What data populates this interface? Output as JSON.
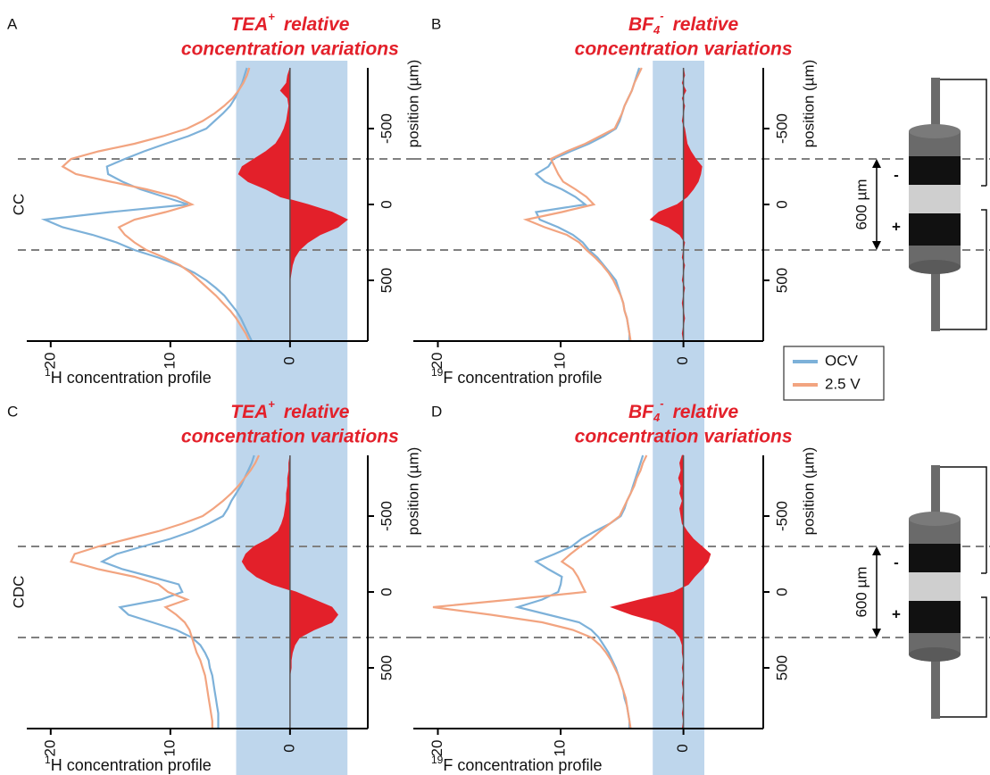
{
  "chart_data": [
    {
      "type": "line",
      "letter": "A",
      "row_label": "CC",
      "title": {
        "base": "TEA",
        "sup": "+",
        "word": "relative",
        "line2": "concentration variations"
      },
      "x_label": {
        "sup": "1",
        "text": "H concentration profile"
      },
      "y_label": "position (µm)",
      "xlim": [
        22,
        -6.5
      ],
      "xticks": [
        20,
        10,
        0
      ],
      "ylim": [
        -900,
        900
      ],
      "yticks": [
        -500,
        0,
        500
      ],
      "band": {
        "color": "#bed6ec",
        "range": [
          4.5,
          -4.8
        ]
      },
      "hlines": [
        -300,
        300
      ],
      "y": [
        -900,
        -850,
        -800,
        -750,
        -700,
        -650,
        -600,
        -550,
        -500,
        -450,
        -400,
        -350,
        -300,
        -250,
        -200,
        -150,
        -100,
        -50,
        0,
        50,
        100,
        150,
        200,
        250,
        300,
        350,
        400,
        450,
        500,
        550,
        600,
        650,
        700,
        750,
        800,
        850,
        900
      ],
      "series": [
        {
          "color": "#7db1d9",
          "values": [
            3.6,
            3.8,
            4.0,
            4.3,
            4.6,
            5.0,
            5.6,
            6.3,
            7.0,
            8.5,
            10.4,
            12.2,
            13.8,
            15.3,
            15.2,
            14.0,
            12.5,
            10.5,
            8.5,
            15.0,
            20.5,
            19.0,
            16.5,
            14.5,
            13.0,
            11.0,
            9.3,
            8.0,
            7.0,
            6.2,
            5.5,
            5.0,
            4.5,
            4.1,
            3.8,
            3.5,
            3.2
          ]
        },
        {
          "color": "#f2a480",
          "values": [
            3.4,
            3.6,
            3.9,
            4.3,
            4.8,
            5.5,
            6.3,
            7.3,
            8.6,
            10.6,
            13.0,
            16.0,
            18.3,
            19.0,
            17.9,
            15.0,
            12.0,
            9.5,
            8.2,
            10.4,
            13.0,
            14.3,
            13.8,
            13.0,
            12.0,
            10.5,
            9.2,
            8.3,
            7.6,
            6.9,
            6.2,
            5.6,
            5.0,
            4.5,
            4.1,
            3.7,
            3.4
          ]
        }
      ],
      "variation": {
        "color": "#e3202a",
        "values": [
          0,
          0.2,
          0.3,
          0.8,
          0.2,
          0.1,
          0.2,
          0.3,
          0.5,
          0.8,
          1.2,
          2.0,
          3.0,
          4.0,
          4.3,
          3.5,
          2.0,
          0.8,
          -1.5,
          -3.5,
          -4.8,
          -4.0,
          -2.5,
          -1.5,
          -0.8,
          -0.4,
          -0.2,
          -0.1,
          0,
          0,
          0,
          0,
          0,
          0,
          0,
          0,
          0
        ]
      }
    },
    {
      "type": "line",
      "letter": "B",
      "title": {
        "base": "BF",
        "sub": "4",
        "sup": "-",
        "word": "relative",
        "line2": "concentration variations"
      },
      "x_label": {
        "sup": "19",
        "text": "F concentration profile"
      },
      "y_label": "position (µm)",
      "xlim": [
        22,
        -6.5
      ],
      "xticks": [
        20,
        10,
        0
      ],
      "ylim": [
        -900,
        900
      ],
      "yticks": [
        -500,
        0,
        500
      ],
      "band": {
        "color": "#bed6ec",
        "range": [
          2.5,
          -1.7
        ]
      },
      "hlines": [
        -300,
        300
      ],
      "y": [
        -900,
        -850,
        -800,
        -750,
        -700,
        -650,
        -600,
        -550,
        -500,
        -450,
        -400,
        -350,
        -300,
        -250,
        -200,
        -150,
        -100,
        -50,
        0,
        50,
        100,
        150,
        200,
        250,
        300,
        350,
        400,
        450,
        500,
        550,
        600,
        650,
        700,
        750,
        800,
        850,
        900
      ],
      "series": [
        {
          "name": "OCV",
          "color": "#7db1d9",
          "values": [
            3.6,
            3.8,
            4.0,
            4.2,
            4.5,
            4.8,
            5.0,
            5.2,
            5.5,
            6.5,
            7.7,
            9.2,
            10.6,
            11.0,
            12.0,
            11.3,
            9.9,
            8.8,
            8.0,
            12.0,
            11.7,
            10.2,
            9.0,
            8.2,
            7.7,
            7.0,
            6.5,
            6.0,
            5.5,
            5.3,
            5.1,
            4.9,
            4.8,
            4.6,
            4.5,
            4.4,
            4.4
          ]
        },
        {
          "name": "2.5 V",
          "color": "#f2a480",
          "values": [
            3.4,
            3.7,
            4.0,
            4.2,
            4.5,
            4.8,
            5.0,
            5.3,
            5.6,
            6.8,
            8.0,
            9.5,
            10.8,
            10.5,
            10.2,
            9.8,
            8.8,
            7.9,
            7.3,
            9.9,
            12.8,
            11.3,
            9.5,
            8.5,
            7.9,
            7.2,
            6.6,
            6.1,
            5.7,
            5.4,
            5.1,
            4.9,
            4.8,
            4.6,
            4.5,
            4.4,
            4.3
          ]
        }
      ],
      "legend": "right",
      "variation": {
        "color": "#e3202a",
        "values": [
          0,
          -0.1,
          0.1,
          -0.2,
          0.1,
          -0.1,
          0,
          0.1,
          -0.1,
          -0.2,
          -0.3,
          -0.6,
          -1.0,
          -1.5,
          -1.4,
          -1.2,
          -0.8,
          -0.3,
          0.5,
          2.0,
          2.7,
          1.2,
          0.3,
          -0.1,
          0,
          0.1,
          -0.1,
          0,
          0.1,
          -0.1,
          0,
          0.1,
          0,
          -0.1,
          0,
          0.1,
          0
        ]
      }
    },
    {
      "type": "line",
      "letter": "C",
      "row_label": "CDC",
      "title": {
        "base": "TEA",
        "sup": "+",
        "word": "relative",
        "line2": "concentration variations"
      },
      "x_label": {
        "sup": "1",
        "text": "H concentration profile"
      },
      "y_label": "position (µm)",
      "xlim": [
        22,
        -6.5
      ],
      "xticks": [
        20,
        10,
        0
      ],
      "ylim": [
        -900,
        900
      ],
      "yticks": [
        -500,
        0,
        500
      ],
      "band": {
        "color": "#bed6ec",
        "range": [
          4.5,
          -4.8
        ]
      },
      "hlines": [
        -300,
        300
      ],
      "y": [
        -900,
        -850,
        -800,
        -750,
        -700,
        -650,
        -600,
        -550,
        -500,
        -450,
        -400,
        -350,
        -300,
        -250,
        -200,
        -150,
        -100,
        -50,
        0,
        50,
        100,
        150,
        200,
        250,
        300,
        350,
        400,
        450,
        500,
        550,
        600,
        650,
        700,
        750,
        800,
        850,
        900
      ],
      "series": [
        {
          "color": "#7db1d9",
          "values": [
            3.0,
            3.2,
            3.5,
            3.8,
            4.1,
            4.5,
            4.9,
            5.2,
            5.6,
            6.8,
            8.2,
            10.0,
            12.3,
            14.5,
            15.7,
            14.0,
            11.6,
            9.3,
            9.0,
            10.8,
            14.2,
            13.5,
            11.5,
            9.5,
            8.2,
            7.5,
            7.1,
            6.8,
            6.7,
            6.5,
            6.4,
            6.3,
            6.2,
            6.1,
            6.0,
            6.0,
            6.0
          ]
        },
        {
          "color": "#f2a480",
          "values": [
            2.6,
            2.9,
            3.3,
            3.8,
            4.3,
            4.9,
            5.6,
            6.4,
            7.3,
            9.0,
            11.0,
            13.5,
            16.0,
            18.0,
            18.3,
            16.0,
            13.0,
            11.0,
            10.2,
            8.6,
            10.4,
            9.5,
            8.8,
            8.4,
            8.2,
            8.0,
            7.8,
            7.5,
            7.3,
            7.1,
            7.0,
            6.9,
            6.8,
            6.7,
            6.6,
            6.5,
            6.5
          ]
        }
      ],
      "variation": {
        "color": "#e3202a",
        "values": [
          0,
          0.1,
          0.1,
          0.2,
          0.2,
          0.3,
          0.3,
          0.4,
          0.5,
          0.7,
          1.0,
          1.8,
          3.0,
          3.7,
          4.0,
          3.6,
          2.8,
          1.5,
          -0.5,
          -2.0,
          -3.5,
          -4.0,
          -3.5,
          -2.0,
          -0.8,
          -0.4,
          -0.2,
          -0.1,
          -0.1,
          0,
          0,
          0,
          0,
          0,
          0,
          0,
          0
        ]
      }
    },
    {
      "type": "line",
      "letter": "D",
      "title": {
        "base": "BF",
        "sub": "4",
        "sup": "-",
        "word": "relative",
        "line2": "concentration variations"
      },
      "x_label": {
        "sup": "19",
        "text": "F concentration profile"
      },
      "y_label": "position (µm)",
      "xlim": [
        22,
        -6.5
      ],
      "xticks": [
        20,
        10,
        0
      ],
      "ylim": [
        -900,
        900
      ],
      "yticks": [
        -500,
        0,
        500
      ],
      "band": {
        "color": "#bed6ec",
        "range": [
          2.5,
          -1.7
        ]
      },
      "hlines": [
        -300,
        300
      ],
      "y": [
        -900,
        -850,
        -800,
        -750,
        -700,
        -650,
        -600,
        -550,
        -500,
        -450,
        -400,
        -350,
        -300,
        -250,
        -200,
        -150,
        -100,
        -50,
        0,
        50,
        100,
        150,
        200,
        250,
        300,
        350,
        400,
        450,
        500,
        550,
        600,
        650,
        700,
        750,
        800,
        850,
        900
      ],
      "series": [
        {
          "color": "#7db1d9",
          "values": [
            3.3,
            3.5,
            3.7,
            3.9,
            4.1,
            4.3,
            4.6,
            4.8,
            5.1,
            6.0,
            7.2,
            8.3,
            9.1,
            10.5,
            12.0,
            11.0,
            9.9,
            10.0,
            10.2,
            11.5,
            13.5,
            11.0,
            8.5,
            7.5,
            6.9,
            6.5,
            6.1,
            5.8,
            5.5,
            5.3,
            5.1,
            4.9,
            4.8,
            4.6,
            4.5,
            4.4,
            4.4
          ]
        },
        {
          "color": "#f2a480",
          "values": [
            3.0,
            3.3,
            3.5,
            3.8,
            4.0,
            4.3,
            4.6,
            4.9,
            5.2,
            6.0,
            6.8,
            7.5,
            8.4,
            9.2,
            9.9,
            9.0,
            8.6,
            8.3,
            8.0,
            14.0,
            20.4,
            15.7,
            11.5,
            9.0,
            7.5,
            6.8,
            6.3,
            5.9,
            5.6,
            5.3,
            5.1,
            4.9,
            4.7,
            4.6,
            4.5,
            4.4,
            4.3
          ]
        }
      ],
      "variation": {
        "color": "#e3202a",
        "values": [
          0.1,
          0.3,
          0.2,
          0.4,
          0.2,
          0.3,
          0.1,
          0.3,
          0.2,
          0.1,
          -0.3,
          -0.8,
          -1.5,
          -2.2,
          -2.0,
          -1.5,
          -0.9,
          -0.4,
          0.8,
          3.5,
          5.9,
          4.2,
          2.0,
          0.8,
          0.3,
          0.1,
          0.1,
          0,
          0.1,
          0,
          0.1,
          0,
          0.1,
          0,
          0.1,
          0,
          0.1
        ]
      }
    }
  ],
  "diagrams": [
    {
      "span_label": "600 µm",
      "minus": "-",
      "plus": "+"
    },
    {
      "span_label": "600 µm",
      "minus": "-",
      "plus": "+"
    }
  ]
}
